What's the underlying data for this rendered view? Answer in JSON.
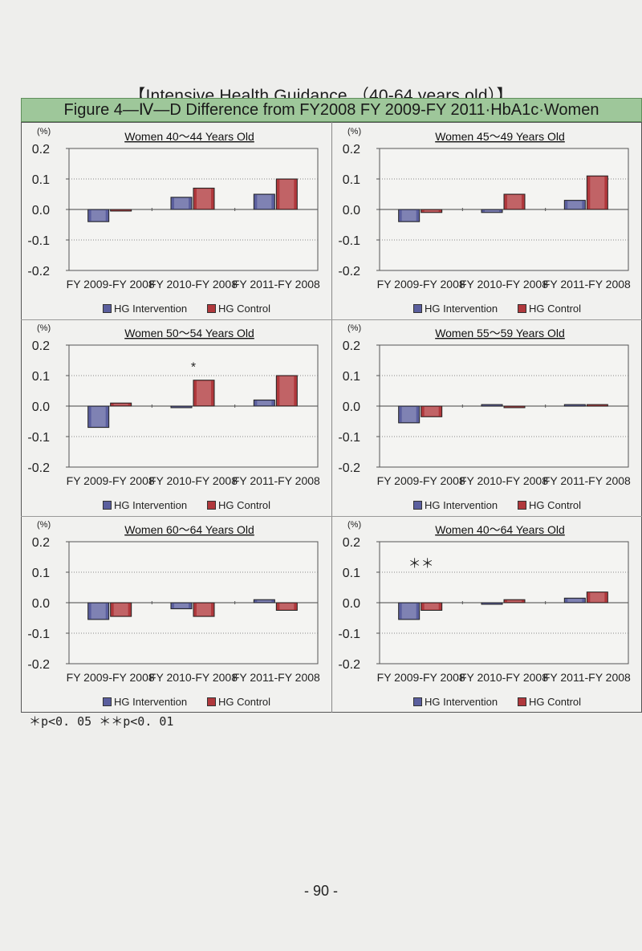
{
  "page_header": "【Intensive Health Guidance （40-64 years old）】",
  "figure_title": "Figure 4—Ⅳ—D  Difference from FY2008 FY 2009-FY 2011·HbA1c·Women",
  "footnote": "＊p<0. 05   ＊＊p<0. 01",
  "page_number": "- 90 -",
  "colors": {
    "intervention": "#5b5f9e",
    "control": "#b0383c",
    "figure_title_bg": "#9ec79a"
  },
  "chart_data": [
    {
      "type": "bar",
      "title": "Women 40～44 Years Old",
      "unit": "(%)",
      "categories": [
        "FY 2009-FY 2008",
        "FY 2010-FY 2008",
        "FY 2011-FY 2008"
      ],
      "series": [
        {
          "name": "HG Intervention",
          "values": [
            -0.04,
            0.04,
            0.05
          ]
        },
        {
          "name": "HG Control",
          "values": [
            -0.005,
            0.07,
            0.1
          ]
        }
      ],
      "yticks": [
        "0.2",
        "0.1",
        "0.0",
        "-0.1",
        "-0.2"
      ],
      "ylim": [
        -0.2,
        0.2
      ],
      "annotations": [],
      "legend": [
        "HG Intervention",
        "HG Control"
      ]
    },
    {
      "type": "bar",
      "title": "Women 45～49 Years Old",
      "unit": "(%)",
      "categories": [
        "FY 2009-FY 2008",
        "FY 2010-FY 2008",
        "FY 2011-FY 2008"
      ],
      "series": [
        {
          "name": "HG Intervention",
          "values": [
            -0.04,
            -0.01,
            0.03
          ]
        },
        {
          "name": "HG Control",
          "values": [
            -0.01,
            0.05,
            0.11
          ]
        }
      ],
      "yticks": [
        "0.2",
        "0.1",
        "0.0",
        "-0.1",
        "-0.2"
      ],
      "ylim": [
        -0.2,
        0.2
      ],
      "annotations": [],
      "legend": [
        "HG Intervention",
        "HG Control"
      ]
    },
    {
      "type": "bar",
      "title": "Women 50～54 Years Old",
      "unit": "(%)",
      "categories": [
        "FY 2009-FY 2008",
        "FY 2010-FY 2008",
        "FY 2011-FY 2008"
      ],
      "series": [
        {
          "name": "HG Intervention",
          "values": [
            -0.07,
            0.0,
            0.02
          ]
        },
        {
          "name": "HG Control",
          "values": [
            0.01,
            0.085,
            0.1
          ]
        }
      ],
      "yticks": [
        "0.2",
        "0.1",
        "0.0",
        "-0.1",
        "-0.2"
      ],
      "ylim": [
        -0.2,
        0.2
      ],
      "annotations": [
        {
          "text": "*",
          "category": 1
        }
      ],
      "legend": [
        "HG Intervention",
        "HG Control"
      ]
    },
    {
      "type": "bar",
      "title": "Women 55～59 Years Old",
      "unit": "(%)",
      "categories": [
        "FY 2009-FY 2008",
        "FY 2010-FY 2008",
        "FY 2011-FY 2008"
      ],
      "series": [
        {
          "name": "HG Intervention",
          "values": [
            -0.055,
            0.005,
            0.005
          ]
        },
        {
          "name": "HG Control",
          "values": [
            -0.035,
            -0.005,
            0.005
          ]
        }
      ],
      "yticks": [
        "0.2",
        "0.1",
        "0.0",
        "-0.1",
        "-0.2"
      ],
      "ylim": [
        -0.2,
        0.2
      ],
      "annotations": [],
      "legend": [
        "HG Intervention",
        "HG Control"
      ]
    },
    {
      "type": "bar",
      "title": "Women 60～64 Years Old",
      "unit": "(%)",
      "categories": [
        "FY 2009-FY 2008",
        "FY 2010-FY 2008",
        "FY 2011-FY 2008"
      ],
      "series": [
        {
          "name": "HG Intervention",
          "values": [
            -0.055,
            -0.02,
            0.01
          ]
        },
        {
          "name": "HG Control",
          "values": [
            -0.045,
            -0.045,
            -0.025
          ]
        }
      ],
      "yticks": [
        "0.2",
        "0.1",
        "0.0",
        "-0.1",
        "-0.2"
      ],
      "ylim": [
        -0.2,
        0.2
      ],
      "annotations": [],
      "legend": [
        "HG Intervention",
        "HG Control"
      ]
    },
    {
      "type": "bar",
      "title": "Women 40～64 Years Old",
      "unit": "(%)",
      "categories": [
        "FY 2009-FY 2008",
        "FY 2010-FY 2008",
        "FY 2011-FY 2008"
      ],
      "series": [
        {
          "name": "HG Intervention",
          "values": [
            -0.055,
            -0.005,
            0.015
          ]
        },
        {
          "name": "HG Control",
          "values": [
            -0.025,
            0.01,
            0.035
          ]
        }
      ],
      "yticks": [
        "0.2",
        "0.1",
        "0.0",
        "-0.1",
        "-0.2"
      ],
      "ylim": [
        -0.2,
        0.2
      ],
      "annotations": [
        {
          "text": "＊＊",
          "category": 0
        }
      ],
      "legend": [
        "HG Intervention",
        "HG Control"
      ]
    }
  ]
}
